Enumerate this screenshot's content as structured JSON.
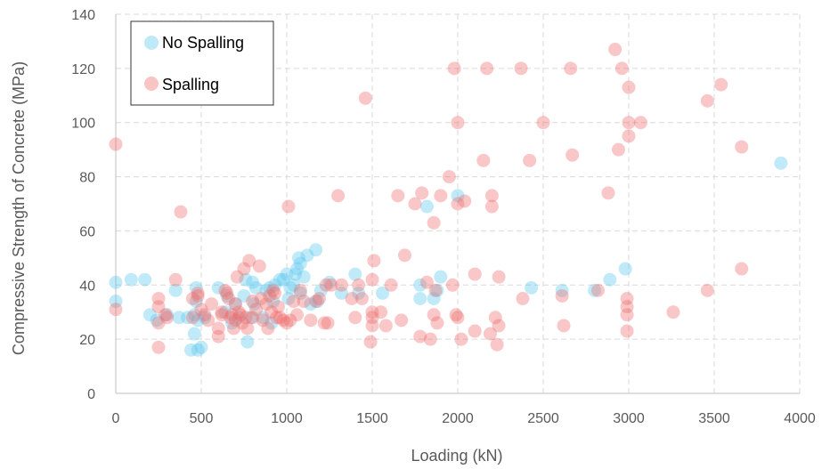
{
  "chart_data": {
    "type": "scatter",
    "title": "",
    "xlabel": "Loading (kN)",
    "ylabel": "Compressive Strength of Concrete (MPa)",
    "xlim": [
      0,
      4000
    ],
    "ylim": [
      0,
      140
    ],
    "xticks": [
      0,
      500,
      1000,
      1500,
      2000,
      2500,
      3000,
      3500,
      4000
    ],
    "yticks": [
      0,
      20,
      40,
      60,
      80,
      100,
      120,
      140
    ],
    "grid": "dashed",
    "legend_position": "top-left",
    "series": [
      {
        "name": "No Spalling",
        "color": "#5bc8f0",
        "points": [
          [
            0,
            41
          ],
          [
            0,
            34
          ],
          [
            90,
            42
          ],
          [
            170,
            42
          ],
          [
            200,
            29
          ],
          [
            240,
            27
          ],
          [
            300,
            29
          ],
          [
            350,
            38
          ],
          [
            370,
            28
          ],
          [
            420,
            28
          ],
          [
            440,
            16
          ],
          [
            460,
            29
          ],
          [
            460,
            22
          ],
          [
            470,
            39
          ],
          [
            470,
            34
          ],
          [
            480,
            16
          ],
          [
            480,
            27
          ],
          [
            500,
            17
          ],
          [
            520,
            28
          ],
          [
            600,
            39
          ],
          [
            640,
            30
          ],
          [
            650,
            36
          ],
          [
            680,
            26
          ],
          [
            700,
            33
          ],
          [
            720,
            28
          ],
          [
            750,
            36
          ],
          [
            760,
            42
          ],
          [
            770,
            19
          ],
          [
            790,
            28
          ],
          [
            800,
            41
          ],
          [
            810,
            33
          ],
          [
            820,
            39
          ],
          [
            860,
            28
          ],
          [
            880,
            38
          ],
          [
            900,
            39
          ],
          [
            910,
            26
          ],
          [
            920,
            34
          ],
          [
            930,
            40
          ],
          [
            960,
            42
          ],
          [
            980,
            42
          ],
          [
            1000,
            44
          ],
          [
            1010,
            35
          ],
          [
            1020,
            39
          ],
          [
            1040,
            40
          ],
          [
            1050,
            44
          ],
          [
            1060,
            46
          ],
          [
            1070,
            50
          ],
          [
            1080,
            48
          ],
          [
            1080,
            37
          ],
          [
            1100,
            43
          ],
          [
            1120,
            51
          ],
          [
            1140,
            33
          ],
          [
            1170,
            53
          ],
          [
            1180,
            34
          ],
          [
            1200,
            38
          ],
          [
            1250,
            41
          ],
          [
            1320,
            37
          ],
          [
            1400,
            44
          ],
          [
            1420,
            37
          ],
          [
            1560,
            37
          ],
          [
            1780,
            35
          ],
          [
            1780,
            40
          ],
          [
            1820,
            69
          ],
          [
            1860,
            35
          ],
          [
            1880,
            38
          ],
          [
            1900,
            43
          ],
          [
            2000,
            73
          ],
          [
            2430,
            39
          ],
          [
            2610,
            38
          ],
          [
            2800,
            38
          ],
          [
            2890,
            42
          ],
          [
            2980,
            46
          ],
          [
            3890,
            85
          ]
        ]
      },
      {
        "name": "Spalling",
        "color": "#f06b6b",
        "points": [
          [
            0,
            92
          ],
          [
            0,
            31
          ],
          [
            250,
            35
          ],
          [
            250,
            32
          ],
          [
            250,
            26
          ],
          [
            250,
            17
          ],
          [
            290,
            29
          ],
          [
            300,
            28
          ],
          [
            350,
            42
          ],
          [
            380,
            67
          ],
          [
            450,
            35
          ],
          [
            450,
            28
          ],
          [
            480,
            37
          ],
          [
            480,
            36
          ],
          [
            500,
            31
          ],
          [
            520,
            29
          ],
          [
            540,
            27
          ],
          [
            560,
            33
          ],
          [
            600,
            24
          ],
          [
            600,
            21
          ],
          [
            620,
            29
          ],
          [
            620,
            30
          ],
          [
            640,
            38
          ],
          [
            650,
            37
          ],
          [
            660,
            35
          ],
          [
            670,
            28
          ],
          [
            680,
            29
          ],
          [
            690,
            24
          ],
          [
            700,
            27
          ],
          [
            700,
            33
          ],
          [
            710,
            43
          ],
          [
            720,
            30
          ],
          [
            730,
            29
          ],
          [
            740,
            26
          ],
          [
            750,
            46
          ],
          [
            760,
            28
          ],
          [
            770,
            24
          ],
          [
            780,
            49
          ],
          [
            800,
            34
          ],
          [
            800,
            28
          ],
          [
            820,
            31
          ],
          [
            840,
            47
          ],
          [
            850,
            35
          ],
          [
            860,
            27
          ],
          [
            880,
            33
          ],
          [
            890,
            24
          ],
          [
            900,
            36
          ],
          [
            910,
            30
          ],
          [
            920,
            38
          ],
          [
            930,
            37
          ],
          [
            940,
            28
          ],
          [
            950,
            32
          ],
          [
            960,
            28
          ],
          [
            980,
            27
          ],
          [
            1000,
            26
          ],
          [
            1010,
            69
          ],
          [
            1020,
            27
          ],
          [
            1040,
            34
          ],
          [
            1060,
            29
          ],
          [
            1080,
            38
          ],
          [
            1100,
            34
          ],
          [
            1140,
            27
          ],
          [
            1170,
            34
          ],
          [
            1190,
            35
          ],
          [
            1220,
            26
          ],
          [
            1230,
            40
          ],
          [
            1240,
            26
          ],
          [
            1260,
            40
          ],
          [
            1300,
            73
          ],
          [
            1320,
            40
          ],
          [
            1380,
            35
          ],
          [
            1400,
            28
          ],
          [
            1420,
            40
          ],
          [
            1440,
            35
          ],
          [
            1460,
            109
          ],
          [
            1490,
            19
          ],
          [
            1500,
            28
          ],
          [
            1500,
            25
          ],
          [
            1500,
            30
          ],
          [
            1500,
            42
          ],
          [
            1510,
            49
          ],
          [
            1550,
            30
          ],
          [
            1580,
            25
          ],
          [
            1610,
            40
          ],
          [
            1650,
            73
          ],
          [
            1670,
            27
          ],
          [
            1690,
            51
          ],
          [
            1750,
            70
          ],
          [
            1780,
            21
          ],
          [
            1790,
            74
          ],
          [
            1820,
            41
          ],
          [
            1840,
            20
          ],
          [
            1860,
            63
          ],
          [
            1860,
            29
          ],
          [
            1870,
            38
          ],
          [
            1880,
            26
          ],
          [
            1900,
            73
          ],
          [
            1950,
            80
          ],
          [
            1970,
            40
          ],
          [
            1980,
            120
          ],
          [
            1990,
            29
          ],
          [
            2000,
            100
          ],
          [
            2000,
            70
          ],
          [
            2000,
            28
          ],
          [
            2020,
            20
          ],
          [
            2040,
            71
          ],
          [
            2100,
            44
          ],
          [
            2100,
            23
          ],
          [
            2150,
            86
          ],
          [
            2170,
            120
          ],
          [
            2190,
            22
          ],
          [
            2200,
            69
          ],
          [
            2200,
            73
          ],
          [
            2220,
            28
          ],
          [
            2230,
            18
          ],
          [
            2240,
            43
          ],
          [
            2240,
            25
          ],
          [
            2370,
            120
          ],
          [
            2380,
            35
          ],
          [
            2420,
            86
          ],
          [
            2500,
            100
          ],
          [
            2610,
            36
          ],
          [
            2620,
            25
          ],
          [
            2660,
            120
          ],
          [
            2670,
            88
          ],
          [
            2820,
            38
          ],
          [
            2880,
            74
          ],
          [
            2920,
            127
          ],
          [
            2940,
            90
          ],
          [
            2960,
            120
          ],
          [
            2990,
            35
          ],
          [
            2990,
            32
          ],
          [
            2990,
            29
          ],
          [
            2990,
            23
          ],
          [
            3000,
            113
          ],
          [
            3000,
            100
          ],
          [
            3000,
            95
          ],
          [
            3070,
            100
          ],
          [
            3260,
            30
          ],
          [
            3460,
            108
          ],
          [
            3460,
            38
          ],
          [
            3540,
            114
          ],
          [
            3660,
            91
          ],
          [
            3660,
            46
          ]
        ]
      }
    ]
  }
}
